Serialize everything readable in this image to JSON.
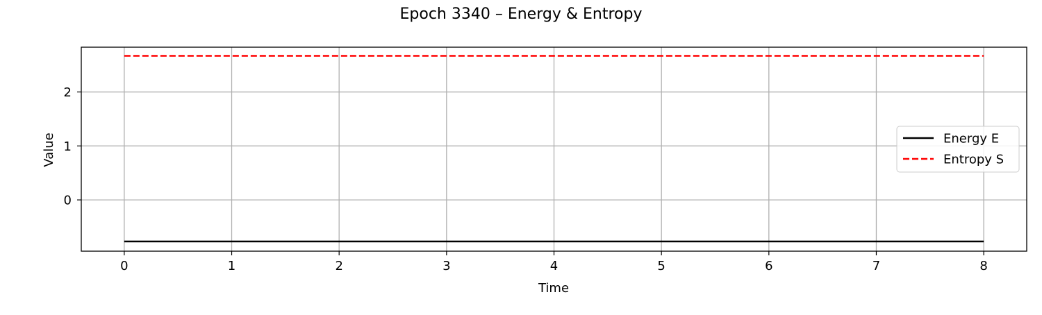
{
  "chart_data": {
    "type": "line",
    "title": "Epoch 3340 – Energy & Entropy",
    "xlabel": "Time",
    "ylabel": "Value",
    "xlim": [
      -0.4,
      8.4
    ],
    "ylim": [
      -0.95,
      2.83
    ],
    "xticks": [
      0,
      1,
      2,
      3,
      4,
      5,
      6,
      7,
      8
    ],
    "yticks": [
      0,
      1,
      2
    ],
    "grid": true,
    "legend_position": "center-right",
    "x": [
      0,
      1,
      2,
      3,
      4,
      5,
      6,
      7,
      8
    ],
    "series": [
      {
        "name": "Energy E",
        "values": [
          -0.77,
          -0.77,
          -0.77,
          -0.77,
          -0.77,
          -0.77,
          -0.77,
          -0.77,
          -0.77
        ],
        "color": "#000000",
        "style": "solid"
      },
      {
        "name": "Entropy S",
        "values": [
          2.67,
          2.67,
          2.67,
          2.67,
          2.67,
          2.67,
          2.67,
          2.67,
          2.67
        ],
        "color": "#ff0000",
        "style": "dashed"
      }
    ]
  }
}
